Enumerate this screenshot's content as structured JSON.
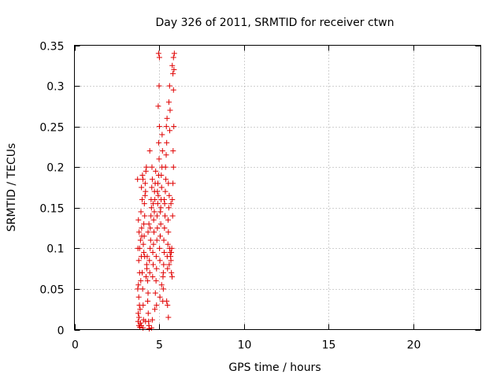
{
  "chart_data": {
    "type": "scatter",
    "title": "Day 326 of 2011, SRMTID for receiver ctwn",
    "xlabel": "GPS time / hours",
    "ylabel": "SRMTID / TECUs",
    "xlim": [
      0,
      24
    ],
    "ylim": [
      0,
      0.35
    ],
    "xticks": [
      "0",
      "5",
      "10",
      "15",
      "20"
    ],
    "xtick_values": [
      0,
      5,
      10,
      15,
      20
    ],
    "yticks": [
      "0",
      "0.05",
      "0.1",
      "0.15",
      "0.2",
      "0.25",
      "0.3",
      "0.35"
    ],
    "ytick_values": [
      0,
      0.05,
      0.1,
      0.15,
      0.2,
      0.25,
      0.3,
      0.35
    ],
    "grid": true,
    "marker": "+",
    "color": "#e00000",
    "series": [
      {
        "name": "ctwn",
        "points": [
          [
            3.73,
            0.185
          ],
          [
            3.78,
            0.135
          ],
          [
            3.82,
            0.12
          ],
          [
            3.75,
            0.1
          ],
          [
            3.8,
            0.085
          ],
          [
            3.85,
            0.07
          ],
          [
            3.78,
            0.055
          ],
          [
            3.74,
            0.05
          ],
          [
            3.8,
            0.04
          ],
          [
            3.84,
            0.03
          ],
          [
            3.77,
            0.02
          ],
          [
            3.82,
            0.015
          ],
          [
            3.76,
            0.01
          ],
          [
            3.81,
            0.005
          ],
          [
            3.86,
            0.003
          ],
          [
            3.9,
            0.008
          ],
          [
            3.88,
            0.025
          ],
          [
            3.92,
            0.06
          ],
          [
            3.95,
            0.09
          ],
          [
            3.9,
            0.11
          ],
          [
            3.97,
            0.125
          ],
          [
            3.93,
            0.145
          ],
          [
            4.0,
            0.16
          ],
          [
            3.96,
            0.175
          ],
          [
            4.02,
            0.19
          ],
          [
            4.05,
            0.185
          ],
          [
            4.0,
            0.07
          ],
          [
            4.03,
            0.05
          ],
          [
            4.06,
            0.03
          ],
          [
            4.08,
            0.012
          ],
          [
            4.1,
            0.095
          ],
          [
            4.07,
            0.105
          ],
          [
            4.12,
            0.115
          ],
          [
            4.1,
            0.13
          ],
          [
            4.15,
            0.14
          ],
          [
            4.13,
            0.155
          ],
          [
            4.17,
            0.165
          ],
          [
            4.2,
            0.17
          ],
          [
            4.18,
            0.18
          ],
          [
            4.22,
            0.195
          ],
          [
            4.25,
            0.2
          ],
          [
            4.23,
            0.065
          ],
          [
            4.27,
            0.08
          ],
          [
            4.3,
            0.09
          ],
          [
            4.28,
            0.075
          ],
          [
            4.32,
            0.06
          ],
          [
            4.35,
            0.045
          ],
          [
            4.33,
            0.035
          ],
          [
            4.36,
            0.02
          ],
          [
            4.4,
            0.005
          ],
          [
            4.42,
            0.001
          ],
          [
            4.38,
            0.01
          ],
          [
            4.45,
            0.07
          ],
          [
            4.43,
            0.085
          ],
          [
            4.47,
            0.1
          ],
          [
            4.5,
            0.11
          ],
          [
            4.48,
            0.125
          ],
          [
            4.52,
            0.14
          ],
          [
            4.55,
            0.15
          ],
          [
            4.53,
            0.16
          ],
          [
            4.57,
            0.175
          ],
          [
            4.6,
            0.185
          ],
          [
            4.58,
            0.2
          ],
          [
            4.45,
            0.22
          ],
          [
            4.62,
            0.065
          ],
          [
            4.65,
            0.08
          ],
          [
            4.63,
            0.095
          ],
          [
            4.67,
            0.105
          ],
          [
            4.7,
            0.12
          ],
          [
            4.68,
            0.135
          ],
          [
            4.72,
            0.145
          ],
          [
            4.75,
            0.16
          ],
          [
            4.73,
            0.17
          ],
          [
            4.77,
            0.18
          ],
          [
            4.8,
            0.195
          ],
          [
            4.78,
            0.045
          ],
          [
            4.82,
            0.06
          ],
          [
            4.85,
            0.075
          ],
          [
            4.83,
            0.09
          ],
          [
            4.87,
            0.11
          ],
          [
            4.9,
            0.125
          ],
          [
            4.88,
            0.14
          ],
          [
            4.92,
            0.155
          ],
          [
            4.95,
            0.165
          ],
          [
            4.93,
            0.18
          ],
          [
            4.97,
            0.19
          ],
          [
            5.0,
            0.21
          ],
          [
            4.98,
            0.23
          ],
          [
            5.02,
            0.25
          ],
          [
            4.95,
            0.275
          ],
          [
            5.0,
            0.3
          ],
          [
            4.97,
            0.34
          ],
          [
            5.02,
            0.335
          ],
          [
            5.05,
            0.085
          ],
          [
            5.03,
            0.1
          ],
          [
            5.07,
            0.115
          ],
          [
            5.1,
            0.13
          ],
          [
            5.08,
            0.145
          ],
          [
            5.12,
            0.16
          ],
          [
            5.15,
            0.175
          ],
          [
            5.13,
            0.19
          ],
          [
            5.17,
            0.2
          ],
          [
            5.2,
            0.22
          ],
          [
            5.18,
            0.24
          ],
          [
            5.22,
            0.035
          ],
          [
            5.25,
            0.05
          ],
          [
            5.23,
            0.065
          ],
          [
            5.27,
            0.08
          ],
          [
            5.3,
            0.095
          ],
          [
            5.28,
            0.11
          ],
          [
            5.32,
            0.125
          ],
          [
            5.35,
            0.14
          ],
          [
            5.33,
            0.155
          ],
          [
            5.37,
            0.17
          ],
          [
            5.4,
            0.185
          ],
          [
            5.38,
            0.2
          ],
          [
            5.42,
            0.215
          ],
          [
            5.45,
            0.23
          ],
          [
            5.43,
            0.25
          ],
          [
            5.47,
            0.26
          ],
          [
            5.5,
            0.075
          ],
          [
            5.48,
            0.09
          ],
          [
            5.52,
            0.105
          ],
          [
            5.55,
            0.12
          ],
          [
            5.53,
            0.135
          ],
          [
            5.57,
            0.15
          ],
          [
            5.6,
            0.165
          ],
          [
            5.58,
            0.28
          ],
          [
            5.62,
            0.3
          ],
          [
            5.65,
            0.27
          ],
          [
            5.63,
            0.245
          ],
          [
            5.5,
            0.03
          ],
          [
            5.55,
            0.015
          ],
          [
            5.6,
            0.08
          ],
          [
            5.65,
            0.095
          ],
          [
            5.62,
            0.1
          ],
          [
            5.68,
            0.09
          ],
          [
            5.7,
            0.085
          ],
          [
            5.72,
            0.095
          ],
          [
            5.75,
            0.1
          ],
          [
            5.73,
            0.07
          ],
          [
            5.77,
            0.065
          ],
          [
            5.8,
            0.14
          ],
          [
            5.78,
            0.16
          ],
          [
            5.82,
            0.18
          ],
          [
            5.85,
            0.2
          ],
          [
            5.83,
            0.22
          ],
          [
            5.87,
            0.25
          ],
          [
            5.85,
            0.295
          ],
          [
            5.82,
            0.315
          ],
          [
            5.88,
            0.32
          ],
          [
            5.85,
            0.335
          ],
          [
            5.9,
            0.34
          ],
          [
            5.78,
            0.325
          ],
          [
            3.95,
            0.005
          ],
          [
            4.05,
            0.002
          ],
          [
            4.2,
            0.01
          ],
          [
            4.55,
            0.002
          ],
          [
            4.6,
            0.012
          ],
          [
            4.75,
            0.025
          ],
          [
            4.85,
            0.03
          ],
          [
            5.05,
            0.04
          ],
          [
            5.15,
            0.055
          ],
          [
            5.25,
            0.07
          ],
          [
            5.45,
            0.035
          ],
          [
            3.85,
            0.1
          ],
          [
            3.98,
            0.115
          ],
          [
            4.15,
            0.09
          ],
          [
            4.35,
            0.12
          ],
          [
            4.4,
            0.13
          ],
          [
            4.65,
            0.155
          ],
          [
            4.9,
            0.17
          ],
          [
            5.1,
            0.15
          ],
          [
            5.3,
            0.16
          ],
          [
            5.55,
            0.18
          ],
          [
            5.7,
            0.155
          ]
        ]
      }
    ]
  }
}
